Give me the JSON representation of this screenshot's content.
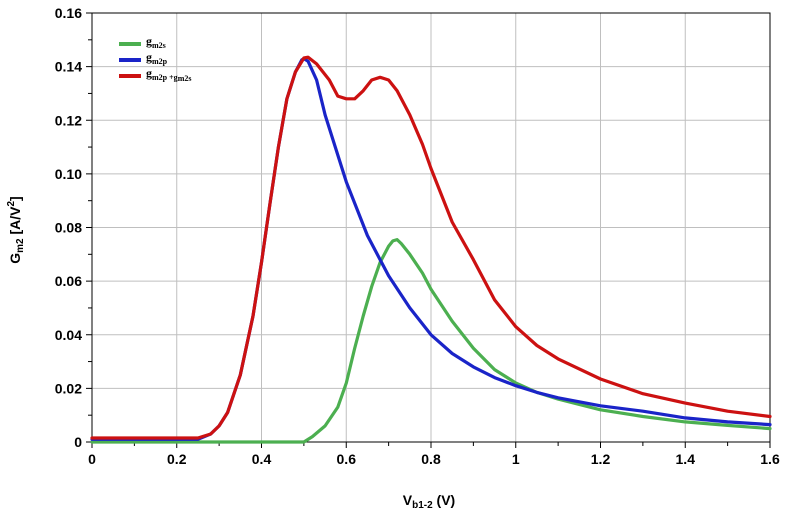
{
  "chart_data": {
    "type": "line",
    "title": "",
    "xlabel": {
      "main": "V",
      "sub": "b1-2",
      "unit": " (V)"
    },
    "ylabel": {
      "main": "G",
      "sub": "m2",
      "unit_prefix": " [A/V",
      "unit_sup": "2",
      "unit_suffix": "]"
    },
    "xlim": [
      0,
      1.6
    ],
    "ylim": [
      0,
      0.16
    ],
    "grid": true,
    "legend_position": "top-left",
    "x_ticks": [
      {
        "v": 0,
        "label": "0"
      },
      {
        "v": 0.2,
        "label": "0.2"
      },
      {
        "v": 0.4,
        "label": "0.4"
      },
      {
        "v": 0.6,
        "label": "0.6"
      },
      {
        "v": 0.8,
        "label": "0.8"
      },
      {
        "v": 1.0,
        "label": "1"
      },
      {
        "v": 1.2,
        "label": "1.2"
      },
      {
        "v": 1.4,
        "label": "1.4"
      },
      {
        "v": 1.6,
        "label": "1.6"
      }
    ],
    "y_ticks": [
      {
        "v": 0,
        "label": "0"
      },
      {
        "v": 0.02,
        "label": "0.02"
      },
      {
        "v": 0.04,
        "label": "0.04"
      },
      {
        "v": 0.06,
        "label": "0.06"
      },
      {
        "v": 0.08,
        "label": "0.08"
      },
      {
        "v": 0.1,
        "label": "0.10"
      },
      {
        "v": 0.12,
        "label": "0.12"
      },
      {
        "v": 0.14,
        "label": "0.14"
      },
      {
        "v": 0.16,
        "label": "0.16"
      }
    ],
    "series": [
      {
        "key": "gm2s",
        "name": "gm2s",
        "legend_main": "g",
        "legend_sub": "m2s",
        "color": "#4caf50",
        "points": [
          [
            0,
            0
          ],
          [
            0.2,
            0
          ],
          [
            0.4,
            0
          ],
          [
            0.49,
            0
          ],
          [
            0.5,
            0
          ],
          [
            0.52,
            0.002
          ],
          [
            0.55,
            0.006
          ],
          [
            0.58,
            0.013
          ],
          [
            0.6,
            0.022
          ],
          [
            0.62,
            0.035
          ],
          [
            0.64,
            0.047
          ],
          [
            0.66,
            0.058
          ],
          [
            0.68,
            0.067
          ],
          [
            0.7,
            0.073
          ],
          [
            0.71,
            0.075
          ],
          [
            0.72,
            0.0755
          ],
          [
            0.73,
            0.074
          ],
          [
            0.75,
            0.07
          ],
          [
            0.78,
            0.063
          ],
          [
            0.8,
            0.057
          ],
          [
            0.85,
            0.045
          ],
          [
            0.9,
            0.035
          ],
          [
            0.95,
            0.027
          ],
          [
            1.0,
            0.022
          ],
          [
            1.05,
            0.0185
          ],
          [
            1.1,
            0.016
          ],
          [
            1.2,
            0.012
          ],
          [
            1.3,
            0.0095
          ],
          [
            1.4,
            0.0075
          ],
          [
            1.5,
            0.0062
          ],
          [
            1.6,
            0.005
          ]
        ]
      },
      {
        "key": "gm2p",
        "name": "gm2p",
        "legend_main": "g",
        "legend_sub": "m2p",
        "color": "#1a24c8",
        "points": [
          [
            0,
            0.001
          ],
          [
            0.15,
            0.001
          ],
          [
            0.25,
            0.001
          ],
          [
            0.28,
            0.003
          ],
          [
            0.3,
            0.006
          ],
          [
            0.32,
            0.011
          ],
          [
            0.35,
            0.025
          ],
          [
            0.38,
            0.047
          ],
          [
            0.4,
            0.067
          ],
          [
            0.42,
            0.089
          ],
          [
            0.44,
            0.11
          ],
          [
            0.46,
            0.128
          ],
          [
            0.48,
            0.138
          ],
          [
            0.495,
            0.1425
          ],
          [
            0.5,
            0.143
          ],
          [
            0.51,
            0.142
          ],
          [
            0.53,
            0.135
          ],
          [
            0.55,
            0.122
          ],
          [
            0.6,
            0.097
          ],
          [
            0.65,
            0.077
          ],
          [
            0.7,
            0.062
          ],
          [
            0.75,
            0.05
          ],
          [
            0.8,
            0.04
          ],
          [
            0.85,
            0.033
          ],
          [
            0.9,
            0.028
          ],
          [
            0.95,
            0.024
          ],
          [
            1.0,
            0.021
          ],
          [
            1.05,
            0.0185
          ],
          [
            1.1,
            0.0165
          ],
          [
            1.2,
            0.0135
          ],
          [
            1.3,
            0.0115
          ],
          [
            1.4,
            0.009
          ],
          [
            1.5,
            0.0075
          ],
          [
            1.6,
            0.0065
          ]
        ]
      },
      {
        "key": "gm2sum",
        "name": "gm2p + gm2s",
        "legend_main": "g",
        "legend_sub": "m2p",
        "legend_plus": " +g",
        "legend_sub2": "m2s",
        "color": "#cc1111",
        "points": [
          [
            0,
            0.0015
          ],
          [
            0.15,
            0.0015
          ],
          [
            0.25,
            0.0015
          ],
          [
            0.28,
            0.003
          ],
          [
            0.3,
            0.006
          ],
          [
            0.32,
            0.011
          ],
          [
            0.35,
            0.025
          ],
          [
            0.38,
            0.047
          ],
          [
            0.4,
            0.067
          ],
          [
            0.42,
            0.089
          ],
          [
            0.44,
            0.11
          ],
          [
            0.46,
            0.128
          ],
          [
            0.48,
            0.138
          ],
          [
            0.5,
            0.1432
          ],
          [
            0.51,
            0.1435
          ],
          [
            0.53,
            0.141
          ],
          [
            0.56,
            0.135
          ],
          [
            0.58,
            0.129
          ],
          [
            0.6,
            0.128
          ],
          [
            0.62,
            0.128
          ],
          [
            0.64,
            0.131
          ],
          [
            0.66,
            0.135
          ],
          [
            0.68,
            0.136
          ],
          [
            0.7,
            0.135
          ],
          [
            0.72,
            0.131
          ],
          [
            0.75,
            0.122
          ],
          [
            0.78,
            0.111
          ],
          [
            0.8,
            0.102
          ],
          [
            0.85,
            0.082
          ],
          [
            0.9,
            0.068
          ],
          [
            0.95,
            0.053
          ],
          [
            1.0,
            0.043
          ],
          [
            1.05,
            0.036
          ],
          [
            1.1,
            0.031
          ],
          [
            1.2,
            0.0235
          ],
          [
            1.3,
            0.018
          ],
          [
            1.4,
            0.0145
          ],
          [
            1.5,
            0.0115
          ],
          [
            1.6,
            0.0095
          ]
        ]
      }
    ]
  }
}
